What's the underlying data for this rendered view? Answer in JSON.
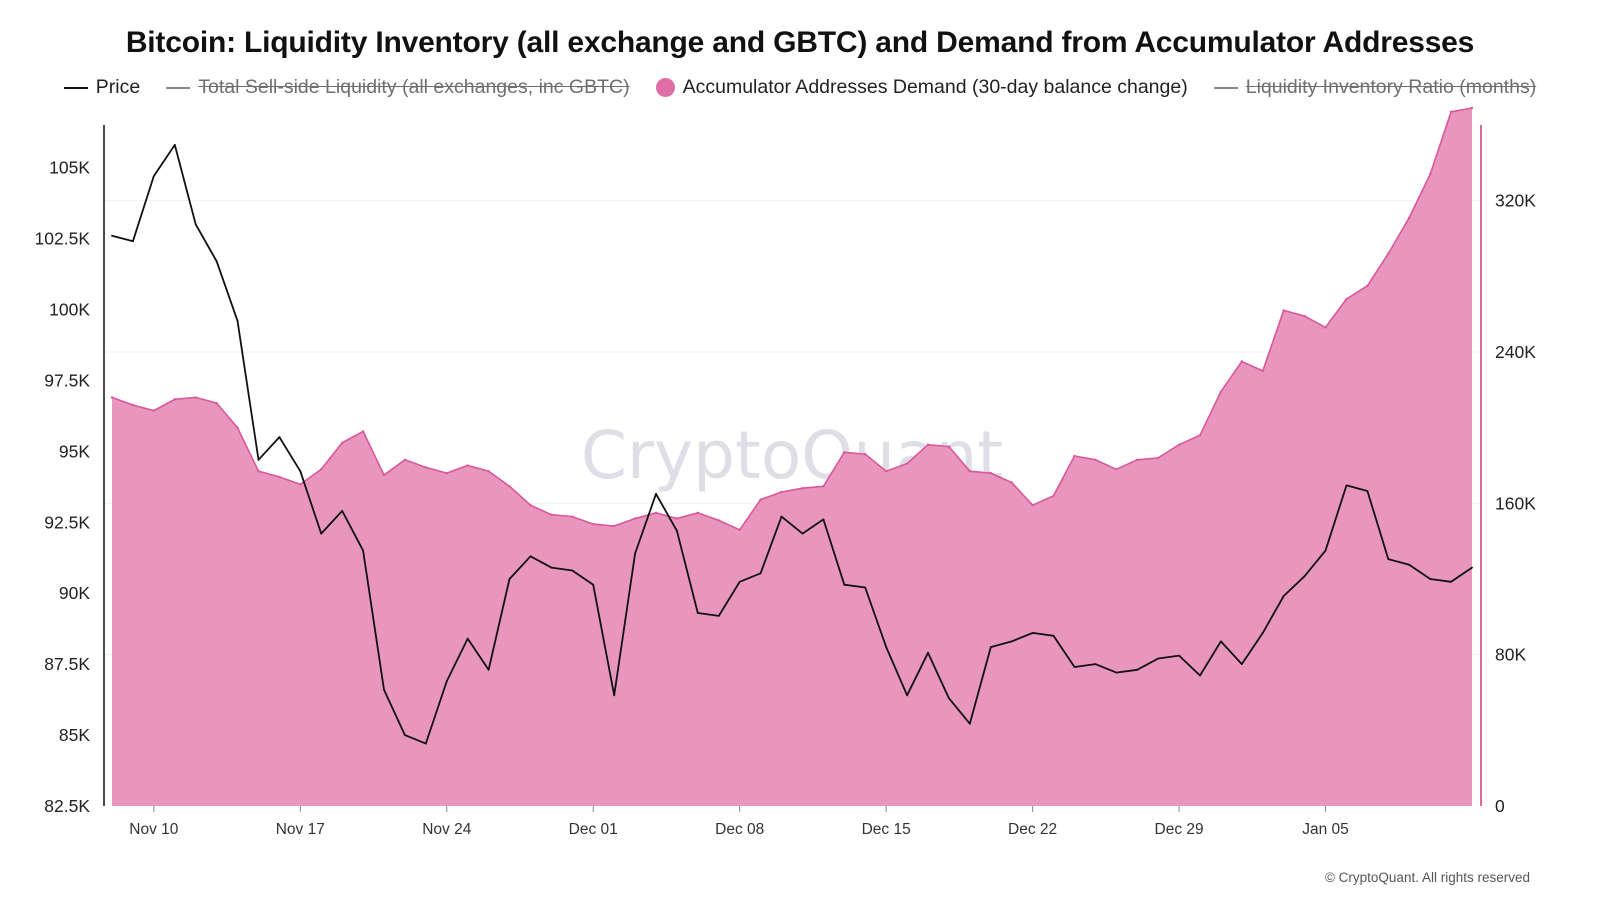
{
  "title": "Bitcoin: Liquidity Inventory (all exchange and GBTC) and Demand from Accumulator Addresses",
  "legend": [
    {
      "label": "Price",
      "kind": "line",
      "color": "#111111",
      "enabled": true
    },
    {
      "label": "Total Sell-side Liquidity (all exchanges, inc GBTC)",
      "kind": "line",
      "color": "#888888",
      "enabled": false
    },
    {
      "label": "Accumulator Addresses Demand (30-day balance change)",
      "kind": "dot",
      "color": "#df6ea6",
      "enabled": true
    },
    {
      "label": "Liquidity Inventory Ratio (months)",
      "kind": "line",
      "color": "#888888",
      "enabled": false
    }
  ],
  "watermark": "CryptoQuant",
  "copyright": "© CryptoQuant. All rights reserved",
  "colors": {
    "price": "#111111",
    "demand_fill": "#e896bd",
    "demand_line": "#d9579a",
    "right_axis": "#d9579a"
  },
  "chart_data": {
    "type": "line+area",
    "x_tick_labels": [
      "Nov 10",
      "Nov 17",
      "Nov 24",
      "Dec 01",
      "Dec 08",
      "Dec 15",
      "Dec 22",
      "Dec 29",
      "Jan 05"
    ],
    "x_start": "Nov 08",
    "x_step_days": 1,
    "y_left": {
      "ticks": [
        82500,
        85000,
        87500,
        90000,
        92500,
        95000,
        97500,
        100000,
        102500,
        105000
      ],
      "tick_labels": [
        "82.5K",
        "85K",
        "87.5K",
        "90K",
        "92.5K",
        "95K",
        "97.5K",
        "100K",
        "102.5K",
        "105K"
      ],
      "range": [
        82500,
        106500
      ]
    },
    "y_right": {
      "ticks": [
        0,
        80000,
        160000,
        240000,
        320000
      ],
      "tick_labels": [
        "0",
        "80K",
        "160K",
        "240K",
        "320K"
      ],
      "range": [
        0,
        360000
      ]
    },
    "series": [
      {
        "name": "Price",
        "axis": "left",
        "type": "line",
        "values": [
          102600,
          102400,
          104700,
          105800,
          103000,
          101700,
          99600,
          94700,
          95500,
          94300,
          92100,
          92900,
          91500,
          86600,
          85000,
          84700,
          86900,
          88400,
          87300,
          90500,
          91300,
          90900,
          90800,
          90300,
          86400,
          91400,
          93500,
          92200,
          89300,
          89200,
          90400,
          90700,
          92700,
          92100,
          92600,
          90300,
          90200,
          88100,
          86400,
          87900,
          86300,
          85400,
          88100,
          88300,
          88600,
          88500,
          87400,
          87500,
          87200,
          87300,
          87700,
          87800,
          87100,
          88300,
          87500,
          88600,
          89900,
          90600,
          91500,
          93800,
          93600,
          91200,
          91000,
          90500,
          90400,
          90900
        ]
      },
      {
        "name": "Accumulator Addresses Demand (30-day balance change)",
        "axis": "right",
        "type": "area",
        "values": [
          216000,
          212000,
          209000,
          215000,
          216000,
          213000,
          200000,
          177000,
          174000,
          170000,
          178000,
          192000,
          198000,
          175000,
          183000,
          179000,
          176000,
          180000,
          177000,
          169000,
          159000,
          154000,
          153000,
          149000,
          148000,
          152000,
          155000,
          152000,
          155000,
          151000,
          146000,
          162000,
          166000,
          168000,
          169000,
          187000,
          186000,
          177000,
          181000,
          191000,
          190000,
          177000,
          176000,
          171000,
          159000,
          164000,
          185000,
          183000,
          178000,
          183000,
          184000,
          191000,
          196000,
          219000,
          235000,
          230000,
          262000,
          259000,
          253000,
          268000,
          275000,
          292000,
          311000,
          334000,
          367000,
          369000
        ]
      }
    ]
  }
}
